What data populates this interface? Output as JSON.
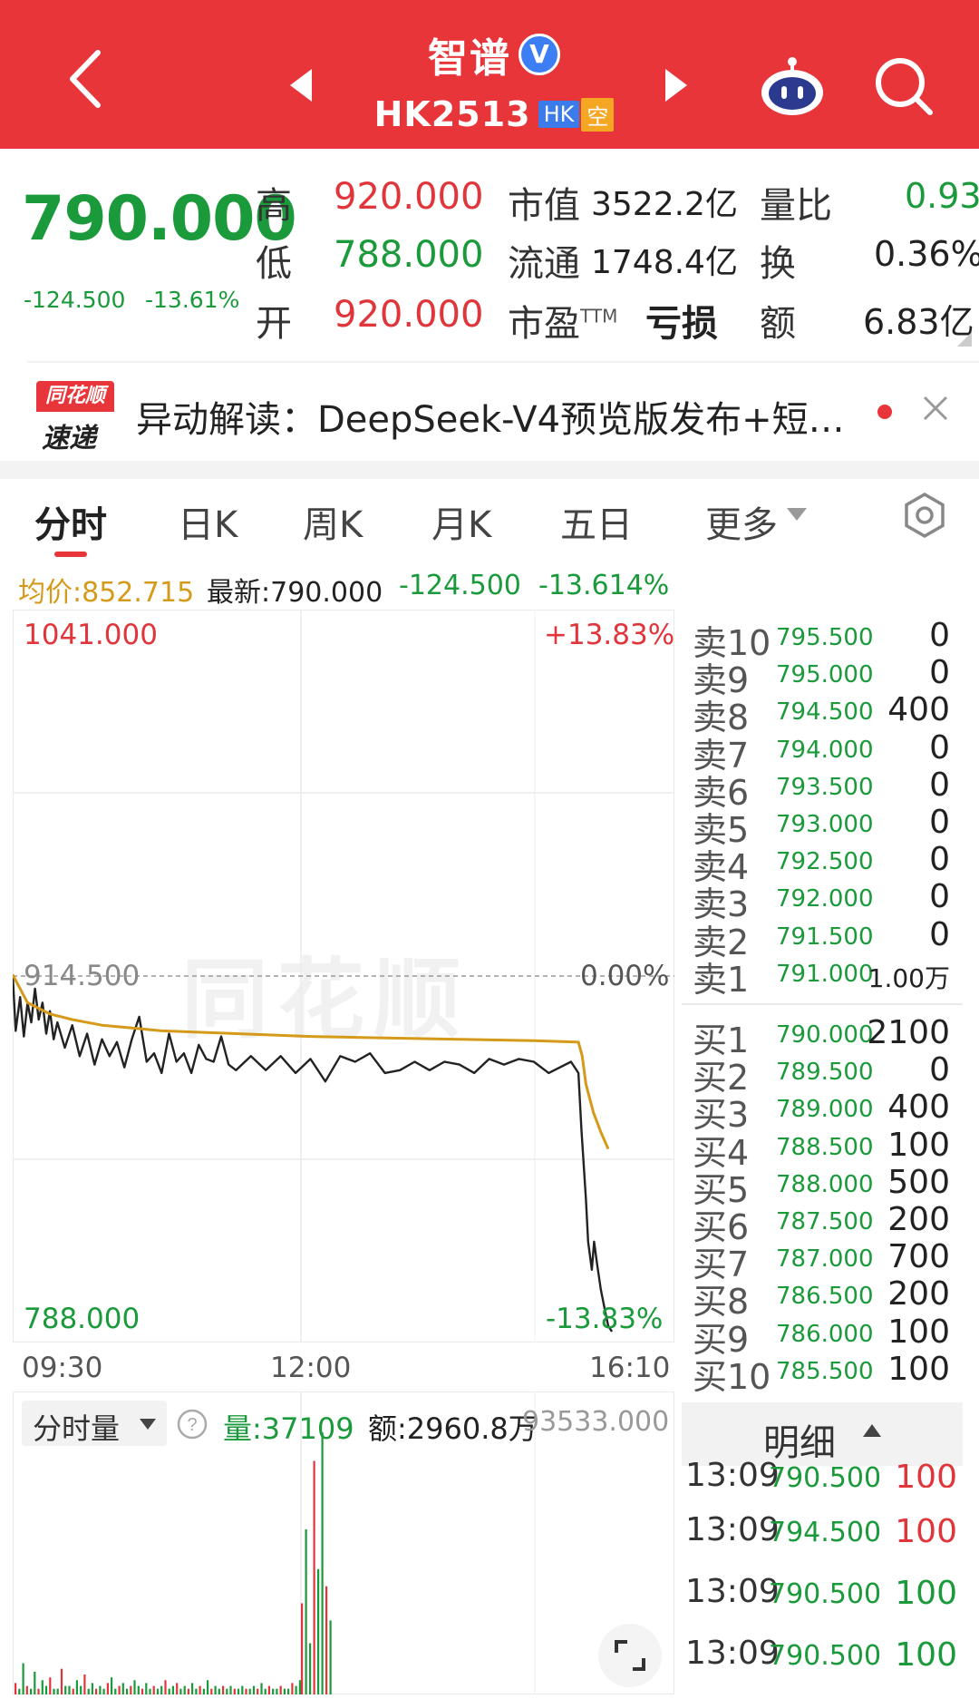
{
  "header": {
    "stock_name": "智谱",
    "verified_mark": "V",
    "stock_code": "HK2513",
    "market_tag": "HK",
    "short_tag": "空",
    "background_color": "#e8353a",
    "icons": [
      "back-arrow-icon",
      "prev-stock-icon",
      "next-stock-icon",
      "robot-assistant-icon",
      "search-icon"
    ]
  },
  "quote": {
    "price": "790.000",
    "change": "-124.500",
    "change_pct": "-13.61%",
    "high_label": "高",
    "high": "920.000",
    "low_label": "低",
    "low": "788.000",
    "open_label": "开",
    "open": "920.000",
    "mktcap_label": "市值",
    "mktcap": "3522.2亿",
    "float_label": "流通",
    "float": "1748.4亿",
    "pe_label": "市盈",
    "pe_sup": "TTM",
    "pe": "亏损",
    "volratio_label": "量比",
    "volratio": "0.93",
    "turnover_label": "换",
    "turnover": "0.36%",
    "amount_label": "额",
    "amount": "6.83亿"
  },
  "news": {
    "logo_top": "同花顺",
    "logo_bottom": "速递",
    "text": "异动解读：DeepSeek-V4预览版发布+短…"
  },
  "tabs": {
    "intraday": "分时",
    "daily": "日K",
    "weekly": "周K",
    "monthly": "月K",
    "five_day": "五日",
    "more": "更多"
  },
  "stats": {
    "avg": "均价:852.715",
    "latest": "最新:790.000",
    "change": "-124.500",
    "change_pct": "-13.614%"
  },
  "chart": {
    "y_top": "1041.000",
    "y_top_pct": "+13.83%",
    "y_mid": "914.500",
    "y_mid_pct": "0.00%",
    "y_bottom": "788.000",
    "y_bottom_pct": "-13.83%",
    "time_start": "09:30",
    "time_mid": "12:00",
    "time_end": "16:10",
    "watermark": "同花顺"
  },
  "chart_data": {
    "type": "line",
    "x_range": [
      "09:30",
      "16:10"
    ],
    "ylim": [
      788.0,
      1041.0
    ],
    "prev_close": 914.5,
    "series": [
      {
        "name": "price",
        "color": "#222222",
        "points": [
          [
            0.0,
            915
          ],
          [
            0.4,
            895
          ],
          [
            1,
            907
          ],
          [
            1.5,
            893
          ],
          [
            2,
            905
          ],
          [
            2.5,
            898
          ],
          [
            3,
            910
          ],
          [
            3.5,
            899
          ],
          [
            4,
            905
          ],
          [
            4.5,
            894
          ],
          [
            5,
            902
          ],
          [
            5.5,
            892
          ],
          [
            6,
            898
          ],
          [
            7,
            889
          ],
          [
            8,
            897
          ],
          [
            9,
            886
          ],
          [
            10,
            894
          ],
          [
            11,
            883
          ],
          [
            12,
            892
          ],
          [
            13,
            886
          ],
          [
            14,
            891
          ],
          [
            15,
            882
          ],
          [
            16,
            892
          ],
          [
            17,
            900
          ],
          [
            18,
            884
          ],
          [
            19,
            887
          ],
          [
            20,
            880
          ],
          [
            21,
            894
          ],
          [
            22,
            884
          ],
          [
            23,
            887
          ],
          [
            24,
            880
          ],
          [
            25,
            890
          ],
          [
            26,
            885
          ],
          [
            27,
            884
          ],
          [
            28,
            893
          ],
          [
            29,
            883
          ],
          [
            30,
            881
          ],
          [
            32,
            886
          ],
          [
            34,
            881
          ],
          [
            36,
            886
          ],
          [
            38,
            880
          ],
          [
            40,
            885
          ],
          [
            42,
            877
          ],
          [
            44,
            886
          ],
          [
            46,
            884
          ],
          [
            48,
            887
          ],
          [
            50,
            880
          ],
          [
            52,
            881
          ],
          [
            54,
            884
          ],
          [
            56,
            881
          ],
          [
            58,
            884
          ],
          [
            60,
            883
          ],
          [
            62,
            880
          ],
          [
            64,
            885
          ],
          [
            66,
            883
          ],
          [
            68,
            885
          ],
          [
            70,
            884
          ],
          [
            72,
            880
          ],
          [
            75,
            884
          ],
          [
            76,
            880
          ],
          [
            76.4,
            860
          ],
          [
            77,
            835
          ],
          [
            77.3,
            820
          ],
          [
            77.8,
            810
          ],
          [
            78.1,
            820
          ],
          [
            78.5,
            812
          ],
          [
            79,
            803
          ],
          [
            79.6,
            795
          ],
          [
            80,
            790
          ],
          [
            80.5,
            788
          ]
        ]
      },
      {
        "name": "avg",
        "color": "#d59a1a",
        "points": [
          [
            0,
            915
          ],
          [
            2,
            905
          ],
          [
            5,
            901
          ],
          [
            8,
            899
          ],
          [
            12,
            897
          ],
          [
            16,
            896
          ],
          [
            20,
            895
          ],
          [
            30,
            894
          ],
          [
            40,
            893
          ],
          [
            50,
            892.5
          ],
          [
            60,
            892
          ],
          [
            70,
            891.5
          ],
          [
            76,
            891
          ],
          [
            76.5,
            886
          ],
          [
            77,
            876
          ],
          [
            78,
            866
          ],
          [
            79,
            859
          ],
          [
            80,
            853
          ]
        ]
      }
    ],
    "volume": {
      "label": "分时量",
      "total": "量:37109",
      "amount": "额:2960.8万",
      "max": "93533.000",
      "bars": [
        0.04,
        0.02,
        0.11,
        0.03,
        0.02,
        0.08,
        0.02,
        0.05,
        0.03,
        0.06,
        0.02,
        0.02,
        0.09,
        0.03,
        0.03,
        0.02,
        0.05,
        0.03,
        0.07,
        0.02,
        0.04,
        0.02,
        0.03,
        0.02,
        0.04,
        0.06,
        0.02,
        0.03,
        0.04,
        0.02,
        0.03,
        0.05,
        0.03,
        0.02,
        0.04,
        0.02,
        0.03,
        0.02,
        0.03,
        0.05,
        0.02,
        0.03,
        0.04,
        0.02,
        0.03,
        0.02,
        0.04,
        0.02,
        0.03,
        0.02,
        0.05,
        0.02,
        0.03,
        0.02,
        0.03,
        0.02,
        0.03,
        0.02,
        0.02,
        0.03,
        0.02,
        0.02,
        0.03,
        0.02,
        0.04,
        0.02,
        0.03,
        0.02,
        0.02,
        0.03,
        0.02,
        0.02,
        0.04,
        0.03,
        0.05,
        0.32,
        0.58,
        0.18,
        0.82,
        0.44,
        0.92,
        0.38,
        0.26
      ]
    }
  },
  "order_book": {
    "asks": [
      {
        "label": "卖10",
        "price": "795.500",
        "vol": "0"
      },
      {
        "label": "卖9",
        "price": "795.000",
        "vol": "0"
      },
      {
        "label": "卖8",
        "price": "794.500",
        "vol": "400"
      },
      {
        "label": "卖7",
        "price": "794.000",
        "vol": "0"
      },
      {
        "label": "卖6",
        "price": "793.500",
        "vol": "0"
      },
      {
        "label": "卖5",
        "price": "793.000",
        "vol": "0"
      },
      {
        "label": "卖4",
        "price": "792.500",
        "vol": "0"
      },
      {
        "label": "卖3",
        "price": "792.000",
        "vol": "0"
      },
      {
        "label": "卖2",
        "price": "791.500",
        "vol": "0"
      },
      {
        "label": "卖1",
        "price": "791.000",
        "vol": "1.00万"
      }
    ],
    "bids": [
      {
        "label": "买1",
        "price": "790.000",
        "vol": "2100"
      },
      {
        "label": "买2",
        "price": "789.500",
        "vol": "0"
      },
      {
        "label": "买3",
        "price": "789.000",
        "vol": "400"
      },
      {
        "label": "买4",
        "price": "788.500",
        "vol": "100"
      },
      {
        "label": "买5",
        "price": "788.000",
        "vol": "500"
      },
      {
        "label": "买6",
        "price": "787.500",
        "vol": "200"
      },
      {
        "label": "买7",
        "price": "787.000",
        "vol": "700"
      },
      {
        "label": "买8",
        "price": "786.500",
        "vol": "200"
      },
      {
        "label": "买9",
        "price": "786.000",
        "vol": "100"
      },
      {
        "label": "买10",
        "price": "785.500",
        "vol": "100"
      }
    ]
  },
  "ticks": {
    "label": "明细",
    "rows": [
      {
        "time": "13:09",
        "price": "790.500",
        "vol": "100",
        "color": "#e0353b"
      },
      {
        "time": "13:09",
        "price": "794.500",
        "vol": "100",
        "color": "#e0353b"
      },
      {
        "time": "13:09",
        "price": "790.500",
        "vol": "100",
        "color": "#1a9a3a"
      },
      {
        "time": "13:09",
        "price": "790.500",
        "vol": "100",
        "color": "#1a9a3a"
      }
    ]
  }
}
